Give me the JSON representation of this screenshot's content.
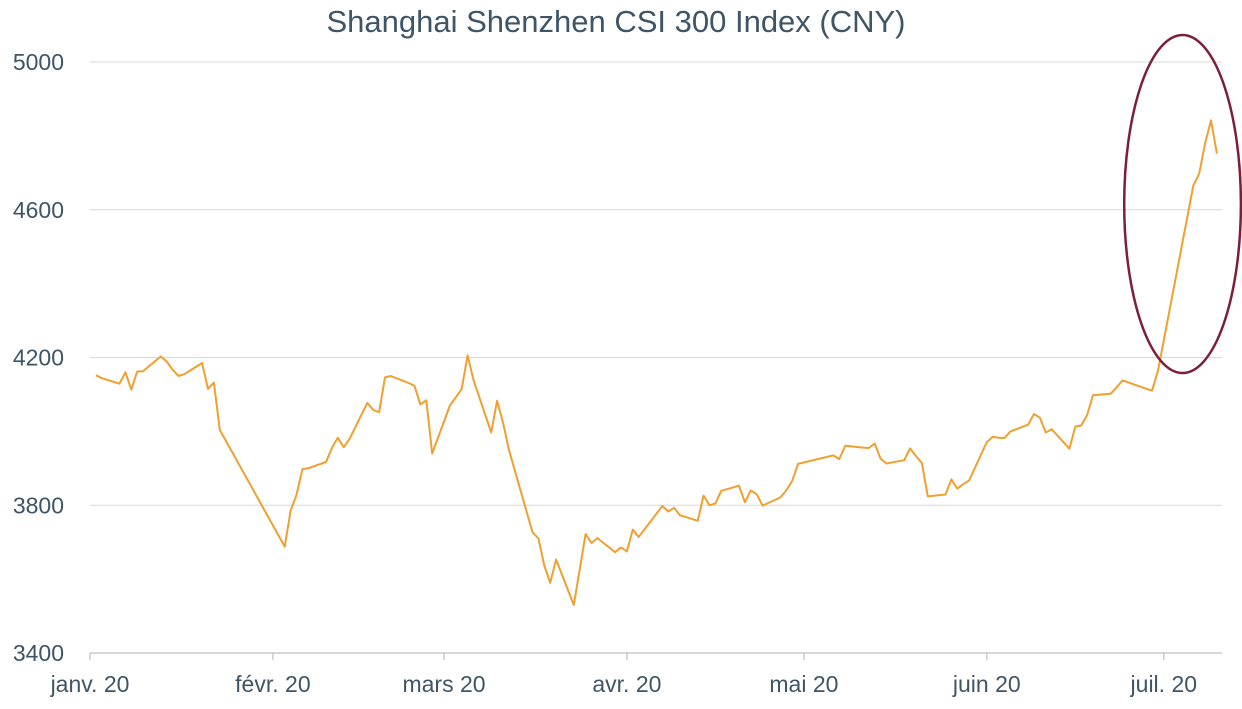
{
  "chart_data": {
    "type": "line",
    "title": "Shanghai Shenzhen CSI 300 Index (CNY)",
    "xlabel": "",
    "ylabel": "",
    "ylim": [
      3400,
      5000
    ],
    "yticks": [
      3400,
      3800,
      4200,
      4600,
      5000
    ],
    "xticks": [
      {
        "label": "janv. 20",
        "date": "2020-01-01"
      },
      {
        "label": "févr. 20",
        "date": "2020-02-01"
      },
      {
        "label": "mars 20",
        "date": "2020-03-01"
      },
      {
        "label": "avr. 20",
        "date": "2020-04-01"
      },
      {
        "label": "mai 20",
        "date": "2020-05-01"
      },
      {
        "label": "juin 20",
        "date": "2020-06-01"
      },
      {
        "label": "juil. 20",
        "date": "2020-07-01"
      }
    ],
    "grid": true,
    "line_color": "#f0a030",
    "highlight_color": "#7d1f3a",
    "highlight_period": [
      "2020-06-27",
      "2020-07-10"
    ],
    "series": [
      {
        "points": [
          [
            "2020-01-02",
            4152
          ],
          [
            "2020-01-03",
            4144
          ],
          [
            "2020-01-06",
            4129
          ],
          [
            "2020-01-07",
            4160
          ],
          [
            "2020-01-08",
            4113
          ],
          [
            "2020-01-09",
            4162
          ],
          [
            "2020-01-10",
            4163
          ],
          [
            "2020-01-13",
            4203
          ],
          [
            "2020-01-14",
            4189
          ],
          [
            "2020-01-15",
            4167
          ],
          [
            "2020-01-16",
            4150
          ],
          [
            "2020-01-17",
            4155
          ],
          [
            "2020-01-20",
            4185
          ],
          [
            "2020-01-21",
            4115
          ],
          [
            "2020-01-22",
            4132
          ],
          [
            "2020-01-23",
            4004
          ],
          [
            "2020-02-03",
            3688
          ],
          [
            "2020-02-04",
            3785
          ],
          [
            "2020-02-05",
            3828
          ],
          [
            "2020-02-06",
            3898
          ],
          [
            "2020-02-07",
            3900
          ],
          [
            "2020-02-10",
            3917
          ],
          [
            "2020-02-11",
            3955
          ],
          [
            "2020-02-12",
            3983
          ],
          [
            "2020-02-13",
            3957
          ],
          [
            "2020-02-14",
            3980
          ],
          [
            "2020-02-17",
            4077
          ],
          [
            "2020-02-18",
            4058
          ],
          [
            "2020-02-19",
            4052
          ],
          [
            "2020-02-20",
            4146
          ],
          [
            "2020-02-21",
            4150
          ],
          [
            "2020-02-24",
            4131
          ],
          [
            "2020-02-25",
            4123
          ],
          [
            "2020-02-26",
            4073
          ],
          [
            "2020-02-27",
            4084
          ],
          [
            "2020-02-28",
            3940
          ],
          [
            "2020-03-02",
            4070
          ],
          [
            "2020-03-03",
            4092
          ],
          [
            "2020-03-04",
            4115
          ],
          [
            "2020-03-05",
            4206
          ],
          [
            "2020-03-06",
            4139
          ],
          [
            "2020-03-09",
            3997
          ],
          [
            "2020-03-10",
            4083
          ],
          [
            "2020-03-11",
            4024
          ],
          [
            "2020-03-12",
            3950
          ],
          [
            "2020-03-16",
            3727
          ],
          [
            "2020-03-17",
            3710
          ],
          [
            "2020-03-18",
            3637
          ],
          [
            "2020-03-19",
            3590
          ],
          [
            "2020-03-20",
            3653
          ],
          [
            "2020-03-23",
            3530
          ],
          [
            "2020-03-24",
            3626
          ],
          [
            "2020-03-25",
            3722
          ],
          [
            "2020-03-26",
            3698
          ],
          [
            "2020-03-27",
            3711
          ],
          [
            "2020-03-30",
            3673
          ],
          [
            "2020-03-31",
            3686
          ],
          [
            "2020-04-01",
            3675
          ],
          [
            "2020-04-02",
            3734
          ],
          [
            "2020-04-03",
            3714
          ],
          [
            "2020-04-07",
            3798
          ],
          [
            "2020-04-08",
            3783
          ],
          [
            "2020-04-09",
            3793
          ],
          [
            "2020-04-10",
            3773
          ],
          [
            "2020-04-13",
            3758
          ],
          [
            "2020-04-14",
            3826
          ],
          [
            "2020-04-15",
            3800
          ],
          [
            "2020-04-16",
            3805
          ],
          [
            "2020-04-17",
            3839
          ],
          [
            "2020-04-20",
            3853
          ],
          [
            "2020-04-21",
            3808
          ],
          [
            "2020-04-22",
            3840
          ],
          [
            "2020-04-23",
            3830
          ],
          [
            "2020-04-24",
            3799
          ],
          [
            "2020-04-27",
            3821
          ],
          [
            "2020-04-28",
            3840
          ],
          [
            "2020-04-29",
            3865
          ],
          [
            "2020-04-30",
            3912
          ],
          [
            "2020-05-06",
            3935
          ],
          [
            "2020-05-07",
            3925
          ],
          [
            "2020-05-08",
            3961
          ],
          [
            "2020-05-11",
            3956
          ],
          [
            "2020-05-12",
            3955
          ],
          [
            "2020-05-13",
            3967
          ],
          [
            "2020-05-14",
            3926
          ],
          [
            "2020-05-15",
            3913
          ],
          [
            "2020-05-18",
            3922
          ],
          [
            "2020-05-19",
            3954
          ],
          [
            "2020-05-20",
            3933
          ],
          [
            "2020-05-21",
            3914
          ],
          [
            "2020-05-22",
            3824
          ],
          [
            "2020-05-25",
            3829
          ],
          [
            "2020-05-26",
            3870
          ],
          [
            "2020-05-27",
            3845
          ],
          [
            "2020-05-28",
            3857
          ],
          [
            "2020-05-29",
            3867
          ],
          [
            "2020-06-01",
            3971
          ],
          [
            "2020-06-02",
            3985
          ],
          [
            "2020-06-03",
            3983
          ],
          [
            "2020-06-04",
            3982
          ],
          [
            "2020-06-05",
            4000
          ],
          [
            "2020-06-08",
            4018
          ],
          [
            "2020-06-09",
            4047
          ],
          [
            "2020-06-10",
            4037
          ],
          [
            "2020-06-11",
            3997
          ],
          [
            "2020-06-12",
            4006
          ],
          [
            "2020-06-15",
            3953
          ],
          [
            "2020-06-16",
            4013
          ],
          [
            "2020-06-17",
            4016
          ],
          [
            "2020-06-18",
            4044
          ],
          [
            "2020-06-19",
            4098
          ],
          [
            "2020-06-22",
            4102
          ],
          [
            "2020-06-23",
            4119
          ],
          [
            "2020-06-24",
            4138
          ],
          [
            "2020-06-29",
            4110
          ],
          [
            "2020-06-30",
            4163
          ],
          [
            "2020-07-06",
            4665
          ],
          [
            "2020-07-07",
            4698
          ],
          [
            "2020-07-08",
            4780
          ],
          [
            "2020-07-09",
            4842
          ],
          [
            "2020-07-10",
            4752
          ]
        ]
      }
    ]
  }
}
